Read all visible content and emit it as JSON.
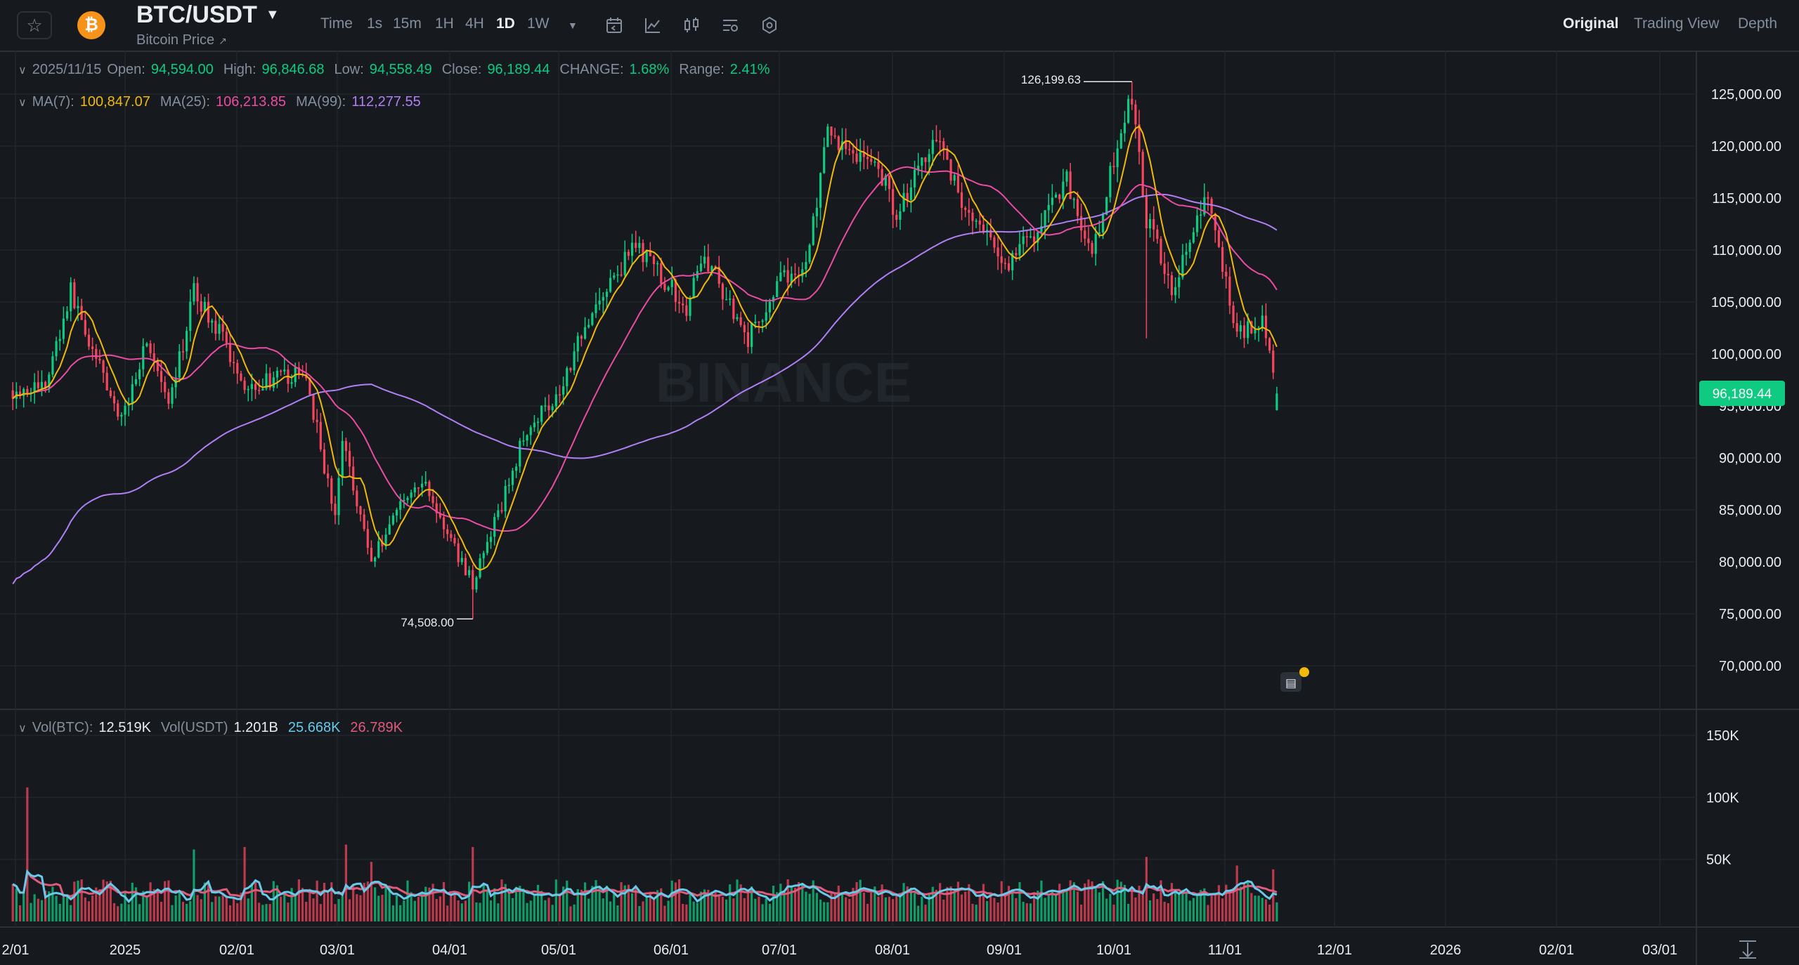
{
  "header": {
    "symbol": "BTC/USDT",
    "subtitle": "Bitcoin Price",
    "coin_icon": "bitcoin-icon",
    "intervals": [
      "Time",
      "1s",
      "15m",
      "1H",
      "4H",
      "1D",
      "1W"
    ],
    "active_interval": "1D",
    "view_tabs": [
      "Original",
      "Trading View",
      "Depth"
    ],
    "active_view": "Original",
    "tools": [
      "calendar-icon",
      "indicator-icon",
      "candle-type-icon",
      "settings-layout-icon",
      "hexagon-settings-icon"
    ]
  },
  "ohlc": {
    "date": "2025/11/15",
    "open_label": "Open:",
    "open": "94,594.00",
    "high_label": "High:",
    "high": "96,846.68",
    "low_label": "Low:",
    "low": "94,558.49",
    "close_label": "Close:",
    "close": "96,189.44",
    "change_label": "CHANGE:",
    "change": "1.68%",
    "range_label": "Range:",
    "range": "2.41%"
  },
  "ma": {
    "ma7_label": "MA(7):",
    "ma7": "100,847.07",
    "ma25_label": "MA(25):",
    "ma25": "106,213.85",
    "ma99_label": "MA(99):",
    "ma99": "112,277.55"
  },
  "volume": {
    "btc_label": "Vol(BTC):",
    "btc": "12.519K",
    "usdt_label": "Vol(USDT)",
    "usdt": "1.201B",
    "ma1": "25.668K",
    "ma2": "26.789K",
    "axis_labels": [
      "150K",
      "100K",
      "50K"
    ]
  },
  "price_axis": [
    "125,000.00",
    "120,000.00",
    "115,000.00",
    "110,000.00",
    "105,000.00",
    "100,000.00",
    "95,000.00",
    "90,000.00",
    "85,000.00",
    "80,000.00",
    "75,000.00",
    "70,000.00"
  ],
  "last_price": "96,189.44",
  "annotations": {
    "high": "126,199.63",
    "low": "74,508.00"
  },
  "time_axis": [
    "2/01",
    "2025",
    "02/01",
    "03/01",
    "04/01",
    "05/01",
    "06/01",
    "07/01",
    "08/01",
    "09/01",
    "10/01",
    "11/01",
    "12/01",
    "2026",
    "02/01",
    "03/01"
  ],
  "watermark": "BINANCE",
  "colors": {
    "up": "#0ecb81",
    "down": "#f6465d",
    "ma7": "#f0b90b",
    "ma25": "#eb4ca3",
    "ma99": "#b17ff5",
    "vol_ma1": "#68c9e8",
    "vol_ma2": "#e05a7c",
    "background": "#161a1e",
    "grid": "#2b3139"
  },
  "chart_data": {
    "type": "candlestick",
    "timeframe": "1D",
    "ylim": [
      66000,
      130000
    ],
    "price_keys": [
      [
        "2024-12-01",
        96500
      ],
      [
        "2024-12-10",
        97000
      ],
      [
        "2024-12-17",
        106000
      ],
      [
        "2024-12-25",
        98500
      ],
      [
        "2024-12-31",
        93500
      ],
      [
        "2025-01-07",
        101500
      ],
      [
        "2025-01-13",
        94500
      ],
      [
        "2025-01-20",
        106000
      ],
      [
        "2025-01-27",
        102000
      ],
      [
        "2025-02-03",
        97000
      ],
      [
        "2025-02-10",
        97500
      ],
      [
        "2025-02-20",
        98000
      ],
      [
        "2025-02-24",
        91000
      ],
      [
        "2025-02-28",
        84000
      ],
      [
        "2025-03-02",
        92000
      ],
      [
        "2025-03-10",
        80000
      ],
      [
        "2025-03-19",
        86500
      ],
      [
        "2025-03-25",
        87500
      ],
      [
        "2025-03-31",
        82500
      ],
      [
        "2025-04-07",
        78000
      ],
      [
        "2025-04-14",
        84500
      ],
      [
        "2025-04-22",
        93000
      ],
      [
        "2025-05-01",
        96500
      ],
      [
        "2025-05-08",
        103000
      ],
      [
        "2025-05-22",
        110500
      ],
      [
        "2025-06-05",
        104500
      ],
      [
        "2025-06-10",
        109500
      ],
      [
        "2025-06-22",
        101500
      ],
      [
        "2025-07-01",
        107000
      ],
      [
        "2025-07-08",
        108500
      ],
      [
        "2025-07-14",
        121000
      ],
      [
        "2025-07-28",
        118000
      ],
      [
        "2025-08-02",
        113500
      ],
      [
        "2025-08-13",
        121500
      ],
      [
        "2025-08-20",
        114500
      ],
      [
        "2025-09-01",
        108500
      ],
      [
        "2025-09-10",
        112000
      ],
      [
        "2025-09-18",
        117000
      ],
      [
        "2025-09-25",
        109000
      ],
      [
        "2025-10-03",
        122000
      ],
      [
        "2025-10-06",
        124500
      ],
      [
        "2025-10-10",
        113000
      ],
      [
        "2025-10-17",
        106500
      ],
      [
        "2025-10-27",
        115000
      ],
      [
        "2025-11-04",
        102000
      ],
      [
        "2025-11-11",
        103500
      ],
      [
        "2025-11-15",
        96189
      ]
    ],
    "volume_range_btc": [
      0,
      165000
    ],
    "annotations": {
      "high": 126199.63,
      "low": 74508.0
    }
  }
}
